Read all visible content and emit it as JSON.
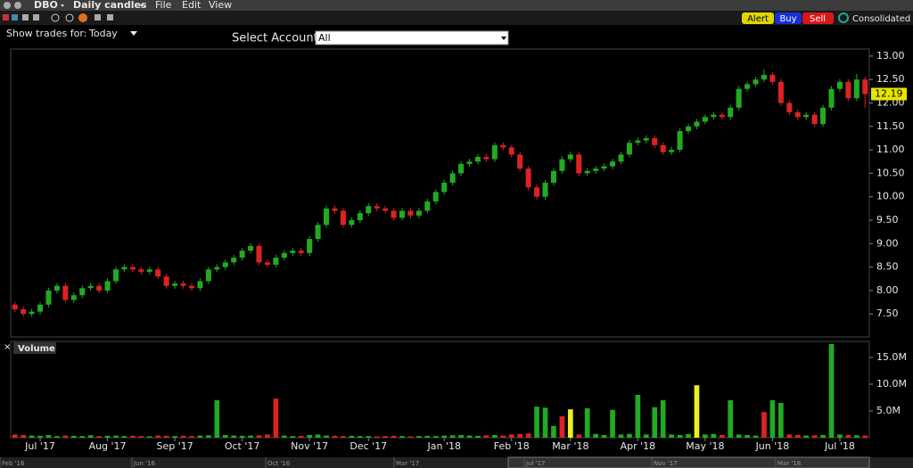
{
  "toolbar": {
    "symbol": "DBO",
    "chart_kind": "Daily candles",
    "menu": [
      "File",
      "Edit",
      "View"
    ]
  },
  "controls": {
    "show_trades_label": "Show trades for:",
    "show_trades_value": "Today",
    "account_label": "Select Account",
    "account_value": "All",
    "buttons": [
      "Alert",
      "Buy",
      "Sell"
    ],
    "feed": "Consolidated"
  },
  "chart_data": [
    {
      "type": "candlestick",
      "up_color": "#22aa22",
      "down_color": "#dd2222",
      "last_color": "#e6e600",
      "ylim": [
        7.01,
        13.15
      ],
      "yticks": [
        {
          "value": 7.5,
          "label": "7.50"
        },
        {
          "value": 8,
          "label": "8.00"
        },
        {
          "value": 8.5,
          "label": "8.50"
        },
        {
          "value": 9,
          "label": "9.00"
        },
        {
          "value": 9.5,
          "label": "9.50"
        },
        {
          "value": 10,
          "label": "10.00"
        },
        {
          "value": 10.5,
          "label": "10.50"
        },
        {
          "value": 11,
          "label": "11.00"
        },
        {
          "value": 11.5,
          "label": "11.50"
        },
        {
          "value": 12,
          "label": "12.00"
        },
        {
          "value": 12.5,
          "label": "12.50"
        },
        {
          "value": 13,
          "label": "13.00"
        }
      ],
      "open": [
        7.7,
        7.6,
        7.5,
        7.55,
        7.7,
        8.0,
        8.1,
        7.8,
        7.9,
        8.05,
        8.1,
        8.0,
        8.2,
        8.45,
        8.5,
        8.45,
        8.4,
        8.45,
        8.3,
        8.1,
        8.15,
        8.1,
        8.05,
        8.2,
        8.45,
        8.5,
        8.6,
        8.7,
        8.85,
        8.95,
        8.6,
        8.55,
        8.7,
        8.8,
        8.85,
        8.8,
        9.1,
        9.4,
        9.75,
        9.7,
        9.4,
        9.5,
        9.65,
        9.8,
        9.75,
        9.7,
        9.55,
        9.7,
        9.6,
        9.7,
        9.9,
        10.1,
        10.3,
        10.5,
        10.7,
        10.75,
        10.85,
        10.8,
        11.1,
        11.05,
        10.9,
        10.6,
        10.2,
        10.0,
        10.3,
        10.55,
        10.8,
        10.9,
        10.5,
        10.55,
        10.6,
        10.65,
        10.75,
        10.9,
        11.15,
        11.2,
        11.25,
        11.1,
        10.95,
        11.0,
        11.4,
        11.5,
        11.6,
        11.7,
        11.75,
        11.7,
        11.9,
        12.3,
        12.4,
        12.5,
        12.6,
        12.45,
        12.0,
        11.8,
        11.7,
        11.75,
        11.55,
        11.9,
        12.3,
        12.45,
        12.1,
        12.5
      ],
      "high": [
        7.76,
        7.66,
        7.61,
        7.76,
        8.06,
        8.16,
        8.16,
        7.96,
        8.11,
        8.16,
        8.16,
        8.26,
        8.51,
        8.56,
        8.56,
        8.51,
        8.51,
        8.51,
        8.36,
        8.21,
        8.21,
        8.16,
        8.26,
        8.51,
        8.56,
        8.66,
        8.76,
        8.91,
        9.01,
        9.01,
        8.66,
        8.76,
        8.86,
        8.91,
        8.91,
        9.16,
        9.46,
        9.81,
        9.81,
        9.76,
        9.56,
        9.71,
        9.86,
        9.86,
        9.81,
        9.76,
        9.76,
        9.76,
        9.76,
        9.96,
        10.16,
        10.36,
        10.56,
        10.76,
        10.81,
        10.91,
        10.91,
        11.16,
        11.16,
        11.11,
        10.96,
        10.66,
        10.26,
        10.36,
        10.61,
        10.86,
        10.96,
        10.96,
        10.61,
        10.66,
        10.71,
        10.81,
        10.96,
        11.21,
        11.26,
        11.31,
        11.31,
        11.16,
        11.06,
        11.46,
        11.56,
        11.66,
        11.76,
        11.81,
        11.81,
        11.96,
        12.36,
        12.46,
        12.56,
        12.72,
        12.66,
        12.51,
        12.06,
        11.86,
        11.81,
        11.81,
        11.96,
        12.36,
        12.51,
        12.51,
        12.62,
        12.56
      ],
      "low": [
        7.54,
        7.44,
        7.44,
        7.49,
        7.64,
        7.94,
        7.74,
        7.74,
        7.84,
        7.99,
        7.94,
        7.94,
        8.14,
        8.39,
        8.39,
        8.34,
        8.34,
        8.24,
        8.04,
        8.04,
        8.04,
        7.99,
        7.99,
        8.14,
        8.39,
        8.44,
        8.54,
        8.64,
        8.79,
        8.54,
        8.49,
        8.49,
        8.64,
        8.74,
        8.74,
        8.74,
        9.04,
        9.34,
        9.64,
        9.34,
        9.34,
        9.44,
        9.59,
        9.69,
        9.64,
        9.49,
        9.49,
        9.54,
        9.54,
        9.64,
        9.84,
        10.04,
        10.24,
        10.44,
        10.64,
        10.69,
        10.74,
        10.74,
        10.99,
        10.84,
        10.54,
        10.14,
        9.94,
        9.94,
        10.24,
        10.49,
        10.74,
        10.44,
        10.44,
        10.49,
        10.54,
        10.59,
        10.69,
        10.84,
        11.09,
        11.14,
        11.04,
        10.89,
        10.89,
        10.94,
        11.34,
        11.44,
        11.54,
        11.64,
        11.64,
        11.64,
        11.84,
        12.24,
        12.34,
        12.44,
        12.39,
        11.94,
        11.74,
        11.64,
        11.64,
        11.49,
        11.49,
        11.84,
        12.24,
        12.04,
        12.04,
        11.9
      ],
      "close": [
        7.6,
        7.5,
        7.55,
        7.7,
        8.0,
        8.1,
        7.8,
        7.9,
        8.05,
        8.1,
        8.0,
        8.2,
        8.45,
        8.5,
        8.45,
        8.4,
        8.45,
        8.3,
        8.1,
        8.15,
        8.1,
        8.05,
        8.2,
        8.45,
        8.5,
        8.6,
        8.7,
        8.85,
        8.95,
        8.6,
        8.55,
        8.7,
        8.8,
        8.85,
        8.8,
        9.1,
        9.4,
        9.75,
        9.7,
        9.4,
        9.5,
        9.65,
        9.8,
        9.75,
        9.7,
        9.55,
        9.7,
        9.6,
        9.7,
        9.9,
        10.1,
        10.3,
        10.5,
        10.7,
        10.75,
        10.85,
        10.8,
        11.1,
        11.05,
        10.9,
        10.6,
        10.2,
        10.0,
        10.3,
        10.55,
        10.8,
        10.9,
        10.5,
        10.55,
        10.6,
        10.65,
        10.75,
        10.9,
        11.15,
        11.2,
        11.25,
        11.1,
        10.95,
        11.0,
        11.4,
        11.5,
        11.6,
        11.7,
        11.75,
        11.7,
        11.9,
        12.3,
        12.4,
        12.5,
        12.6,
        12.45,
        12.0,
        11.8,
        11.7,
        11.75,
        11.55,
        11.9,
        12.3,
        12.45,
        12.1,
        12.5,
        12.19
      ]
    },
    {
      "type": "bar",
      "title": "Volume",
      "categories": [
        null,
        null,
        null,
        "Jul '17",
        null,
        null,
        null,
        null,
        null,
        null,
        null,
        "Aug '17",
        null,
        null,
        null,
        null,
        null,
        null,
        null,
        "Sep '17",
        null,
        null,
        null,
        null,
        null,
        null,
        null,
        "Oct '17",
        null,
        null,
        null,
        null,
        null,
        null,
        null,
        "Nov '17",
        null,
        null,
        null,
        null,
        null,
        null,
        "Dec '17",
        null,
        null,
        null,
        null,
        null,
        null,
        null,
        null,
        "Jan '18",
        null,
        null,
        null,
        null,
        null,
        null,
        null,
        "Feb '18",
        null,
        null,
        null,
        null,
        null,
        null,
        "Mar '18",
        null,
        null,
        null,
        null,
        null,
        null,
        null,
        "Apr '18",
        null,
        null,
        null,
        null,
        null,
        null,
        null,
        "May '18",
        null,
        null,
        null,
        null,
        null,
        null,
        null,
        "Jun '18",
        null,
        null,
        null,
        null,
        null,
        null,
        null,
        "Jul '18",
        null,
        null,
        null
      ],
      "values": [
        600000,
        500000,
        400000,
        350000,
        500000,
        300000,
        400000,
        350000,
        300000,
        450000,
        300000,
        350000,
        400000,
        300000,
        350000,
        300000,
        250000,
        400000,
        350000,
        300000,
        350000,
        300000,
        400000,
        450000,
        7000000,
        500000,
        400000,
        350000,
        400000,
        450000,
        600000,
        7300000,
        400000,
        300000,
        350000,
        500000,
        600000,
        400000,
        350000,
        300000,
        350000,
        300000,
        300000,
        250000,
        300000,
        350000,
        300000,
        250000,
        300000,
        350000,
        300000,
        400000,
        450000,
        500000,
        400000,
        350000,
        450000,
        500000,
        400000,
        600000,
        700000,
        800000,
        5800000,
        5600000,
        2200000,
        4000000,
        5300000,
        600000,
        5500000,
        700000,
        500000,
        5200000,
        600000,
        700000,
        8000000,
        600000,
        5700000,
        7000000,
        600000,
        500000,
        700000,
        9800000,
        600000,
        700000,
        500000,
        7000000,
        600000,
        500000,
        400000,
        4800000,
        7000000,
        6500000,
        600000,
        500000,
        400000,
        450000,
        500000,
        17500000,
        600000,
        500000,
        450000,
        400000
      ],
      "colors": [
        "#dd2222",
        "#dd2222",
        "#22aa22",
        "#22aa22",
        "#22aa22",
        "#22aa22",
        "#dd2222",
        "#22aa22",
        "#22aa22",
        "#22aa22",
        "#dd2222",
        "#22aa22",
        "#22aa22",
        "#22aa22",
        "#dd2222",
        "#dd2222",
        "#22aa22",
        "#dd2222",
        "#dd2222",
        "#22aa22",
        "#dd2222",
        "#dd2222",
        "#22aa22",
        "#22aa22",
        "#22aa22",
        "#22aa22",
        "#22aa22",
        "#22aa22",
        "#22aa22",
        "#dd2222",
        "#dd2222",
        "#dd2222",
        "#22aa22",
        "#22aa22",
        "#dd2222",
        "#22aa22",
        "#22aa22",
        "#22aa22",
        "#dd2222",
        "#dd2222",
        "#22aa22",
        "#22aa22",
        "#22aa22",
        "#dd2222",
        "#dd2222",
        "#dd2222",
        "#22aa22",
        "#dd2222",
        "#22aa22",
        "#22aa22",
        "#22aa22",
        "#22aa22",
        "#22aa22",
        "#22aa22",
        "#22aa22",
        "#22aa22",
        "#dd2222",
        "#22aa22",
        "#dd2222",
        "#dd2222",
        "#dd2222",
        "#dd2222",
        "#22aa22",
        "#22aa22",
        "#22aa22",
        "#dd2222",
        "#eeee22",
        "#dd2222",
        "#22aa22",
        "#22aa22",
        "#22aa22",
        "#22aa22",
        "#22aa22",
        "#22aa22",
        "#22aa22",
        "#22aa22",
        "#22aa22",
        "#22aa22",
        "#22aa22",
        "#22aa22",
        "#22aa22",
        "#eeee22",
        "#22aa22",
        "#22aa22",
        "#dd2222",
        "#22aa22",
        "#22aa22",
        "#22aa22",
        "#22aa22",
        "#dd2222",
        "#22aa22",
        "#22aa22",
        "#dd2222",
        "#dd2222",
        "#22aa22",
        "#dd2222",
        "#22aa22",
        "#22aa22",
        "#22aa22",
        "#dd2222",
        "#22aa22",
        "#dd2222"
      ],
      "ylim": [
        0,
        18000000
      ],
      "yticks": [
        {
          "value": 5000000,
          "label": "5.0M"
        },
        {
          "value": 10000000,
          "label": "10.0M"
        },
        {
          "value": 15000000,
          "label": "15.0M"
        }
      ]
    }
  ],
  "navigator": {
    "labels": [
      "Feb '16",
      "Jun '16",
      "Oct '16",
      "Mar '17",
      "Jul '17",
      "Nov '17",
      "Mar '18"
    ]
  }
}
